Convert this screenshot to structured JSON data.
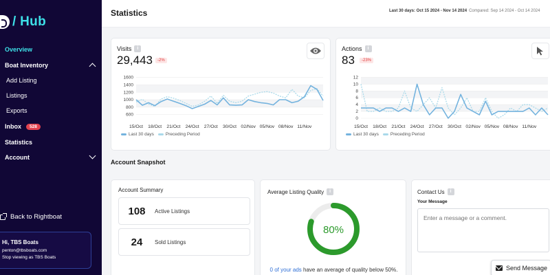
{
  "brand": {
    "text": "/ Hub"
  },
  "sidebar": {
    "items": [
      {
        "label": "Overview"
      },
      {
        "label": "Boat Inventory"
      },
      {
        "label": "Add Listing"
      },
      {
        "label": "Listings"
      },
      {
        "label": "Exports"
      },
      {
        "label": "Inbox",
        "badge": "528"
      },
      {
        "label": "Statistics"
      },
      {
        "label": "Account"
      }
    ],
    "back_link": "Back to Rightboat",
    "user": {
      "greeting": "Hi, TBS Boats",
      "email": "penton@tbsboats.com",
      "stop": "Stop viewing as TBS Boats"
    }
  },
  "header": {
    "title": "Statistics",
    "date_range": "Last 30 days: Oct 15 2024 - Nov 14 2024",
    "compared": "Compared: Sep 14 2024 - Oct 14 2024"
  },
  "visits": {
    "title": "Visits",
    "info": "i",
    "value": "29,443",
    "delta": "-2%",
    "icon": "eye-icon"
  },
  "actions": {
    "title": "Actions",
    "info": "i",
    "value": "83",
    "delta": "-23%",
    "icon": "cursor-icon"
  },
  "legend": {
    "current": "Last 30 days",
    "previous": "Preceding Period"
  },
  "chart_data": [
    {
      "type": "line",
      "x_ticks": [
        "15/Oct",
        "18/Oct",
        "21/Oct",
        "24/Oct",
        "27/Oct",
        "30/Oct",
        "02/Nov",
        "05/Nov",
        "08/Nov",
        "11/Nov"
      ],
      "y_ticks": [
        600,
        800,
        1000,
        1200,
        1400,
        1600
      ],
      "ylim": [
        500,
        1650
      ],
      "series": [
        {
          "name": "Last 30 days",
          "values": [
            1000,
            850,
            920,
            840,
            950,
            1020,
            960,
            900,
            840,
            760,
            820,
            880,
            980,
            860,
            1050,
            860,
            850,
            860,
            1000,
            950,
            920,
            900,
            860,
            1000,
            1000,
            920,
            960,
            1080,
            1380,
            1280,
            980
          ]
        },
        {
          "name": "Preceding Period",
          "values": [
            940,
            1010,
            880,
            820,
            1020,
            1080,
            1040,
            980,
            900,
            820,
            860,
            960,
            1100,
            900,
            1120,
            960,
            920,
            960,
            1100,
            1150,
            1200,
            1220,
            1180,
            1100,
            1050,
            1280,
            1100,
            1050,
            1250,
            1300,
            1100
          ]
        }
      ]
    },
    {
      "type": "line",
      "x_ticks": [
        "15/Oct",
        "18/Oct",
        "21/Oct",
        "24/Oct",
        "27/Oct",
        "30/Oct",
        "02/Nov",
        "05/Nov",
        "08/Nov",
        "11/Nov"
      ],
      "y_ticks": [
        0,
        2,
        4,
        6,
        8,
        10,
        12
      ],
      "ylim": [
        0,
        12.5
      ],
      "series": [
        {
          "name": "Last 30 days",
          "values": [
            3,
            3,
            3,
            2,
            3,
            3,
            2,
            3,
            2,
            10,
            4,
            1,
            3,
            3,
            0,
            2,
            7,
            3,
            2,
            1,
            5,
            1,
            2,
            2,
            2,
            2,
            2,
            3,
            1,
            3,
            1
          ]
        },
        {
          "name": "Preceding Period",
          "values": [
            10,
            2,
            2,
            3,
            2,
            2,
            3,
            8,
            3,
            2,
            4,
            6,
            3,
            9,
            3,
            1,
            3,
            6,
            2,
            2,
            6,
            2,
            0,
            1,
            3,
            2,
            4,
            4,
            3,
            2,
            3
          ]
        }
      ]
    }
  ],
  "snapshot": {
    "title": "Account Snapshot",
    "summary_title": "Account Summary",
    "active_count": "108",
    "active_label": "Active Listings",
    "sold_count": "24",
    "sold_label": "Sold Listings"
  },
  "quality": {
    "title": "Average Listing Quality",
    "info": "i",
    "value": 80,
    "value_text": "80%",
    "foot_link": "0 of your ads",
    "foot_rest": " have an average of quality below 50%."
  },
  "contact": {
    "title": "Contact Us",
    "info": "i",
    "label": "Your Message",
    "placeholder": "Enter a message or a comment.",
    "send": "Send Message"
  },
  "colors": {
    "sidebar_bg": "#110736",
    "accent": "#3ee0e8",
    "series_current": "#74b3de",
    "series_previous": "#a9d9ea",
    "gauge": "#2c9a2c"
  }
}
